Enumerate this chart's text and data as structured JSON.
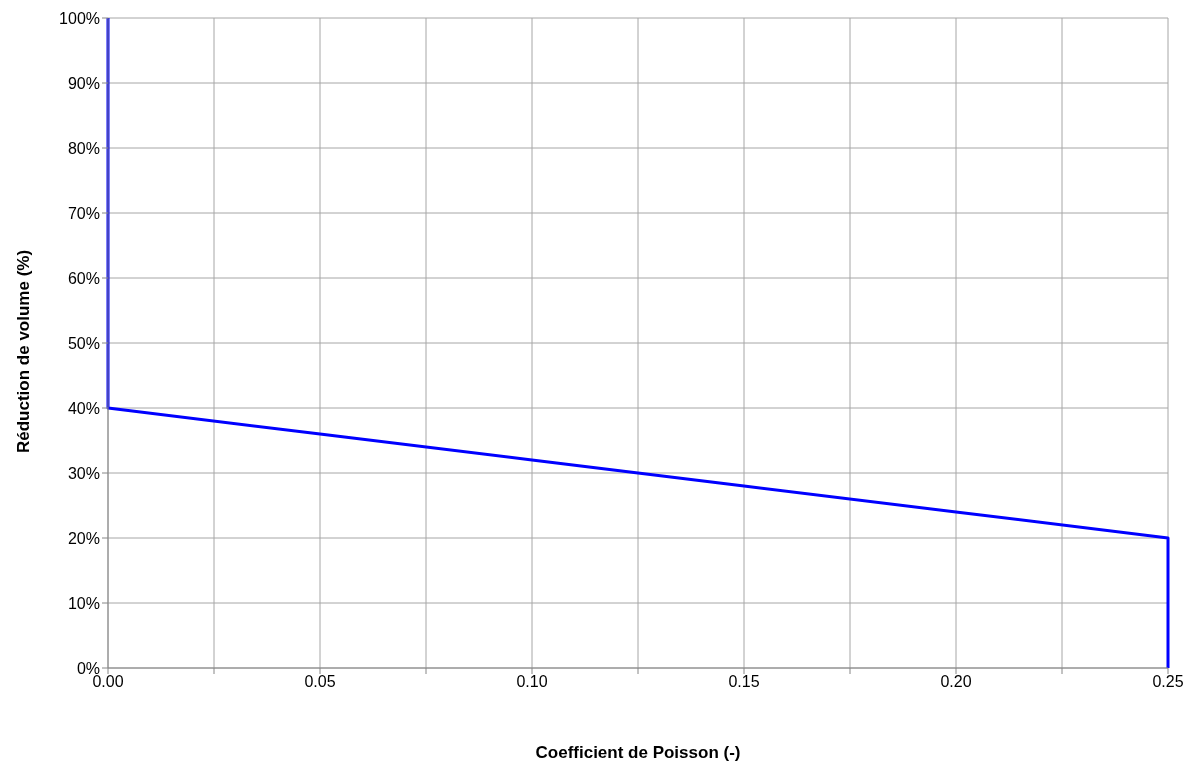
{
  "chart_data": {
    "type": "line",
    "xlabel": "Coefficient de Poisson (-)",
    "ylabel": "Réduction de volume (%)",
    "x": [
      0,
      0,
      0.05,
      0.1,
      0.15,
      0.2,
      0.25,
      0.25
    ],
    "series": [
      {
        "color": "#0000ff",
        "values": [
          100,
          40,
          36,
          32,
          28,
          24,
          20,
          0
        ]
      }
    ],
    "xlim": [
      0,
      0.25
    ],
    "xticks": [
      {
        "value": 0,
        "label": "0.00"
      },
      {
        "value": 0.025,
        "label": null
      },
      {
        "value": 0.05,
        "label": "0.05"
      },
      {
        "value": 0.075,
        "label": null
      },
      {
        "value": 0.1,
        "label": "0.10"
      },
      {
        "value": 0.125,
        "label": null
      },
      {
        "value": 0.15,
        "label": "0.15"
      },
      {
        "value": 0.175,
        "label": null
      },
      {
        "value": 0.2,
        "label": "0.20"
      },
      {
        "value": 0.225,
        "label": null
      },
      {
        "value": 0.25,
        "label": "0.25"
      }
    ],
    "ylim": [
      0,
      100
    ],
    "yticks": [
      {
        "value": 0,
        "label": "0%"
      },
      {
        "value": 10,
        "label": "10%"
      },
      {
        "value": 20,
        "label": "20%"
      },
      {
        "value": 30,
        "label": "30%"
      },
      {
        "value": 40,
        "label": "40%"
      },
      {
        "value": 50,
        "label": "50%"
      },
      {
        "value": 60,
        "label": "60%"
      },
      {
        "value": 70,
        "label": "70%"
      },
      {
        "value": 80,
        "label": "80%"
      },
      {
        "value": 90,
        "label": "90%"
      },
      {
        "value": 100,
        "label": "100%"
      }
    ],
    "grid": true,
    "legend": false,
    "marker": "none",
    "line_style": "solid"
  }
}
